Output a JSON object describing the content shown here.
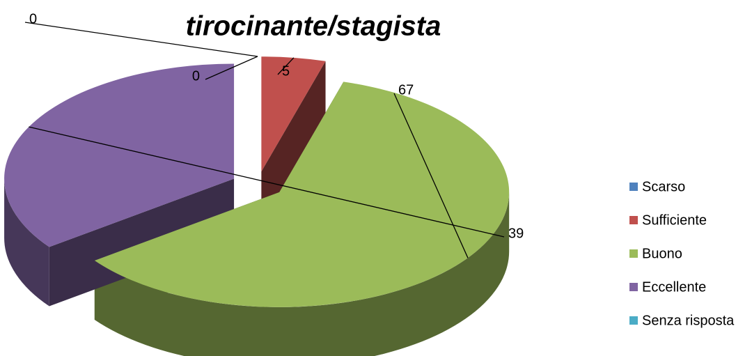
{
  "chart_data": {
    "type": "pie3d",
    "title": "tirocinante/stagista",
    "categories": [
      "Scarso",
      "Sufficiente",
      "Buono",
      "Eccellente",
      "Senza risposta"
    ],
    "values": [
      0,
      5,
      67,
      39,
      0
    ],
    "colors": [
      "#4f81bd",
      "#c0504d",
      "#9bbb59",
      "#8064a2",
      "#4bacc6"
    ],
    "legend": "right"
  }
}
